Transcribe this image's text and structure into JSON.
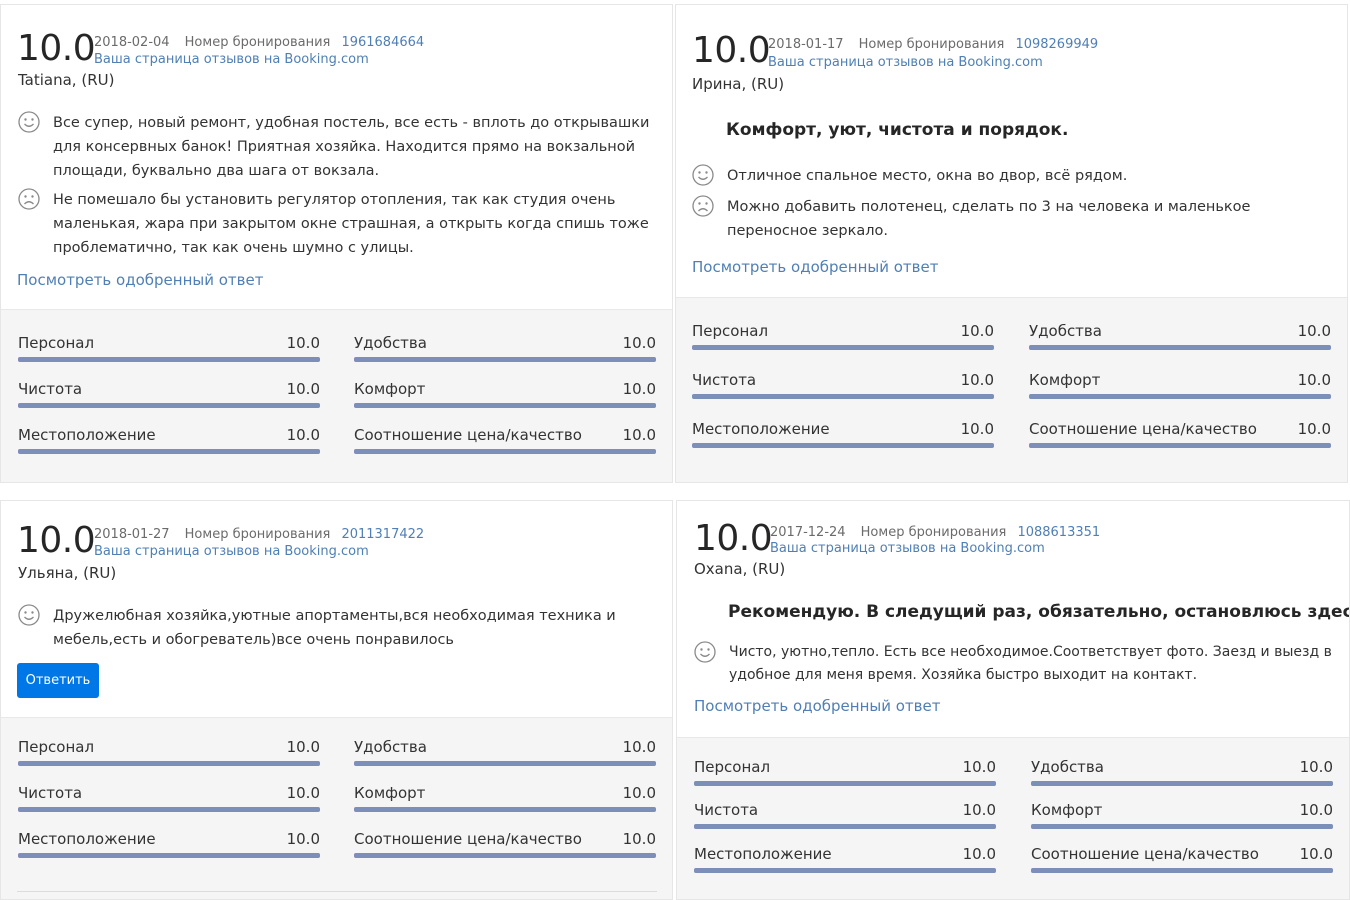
{
  "colors": {
    "link": "#4f7fb5",
    "bar": "#7c8fb8",
    "button": "#0077e6"
  },
  "booking_label": "Номер бронирования",
  "page_link": "Ваша страница отзывов на Booking.com",
  "approved_link": "Посмотреть одобренный ответ",
  "reply_button": "Ответить",
  "score_labels": {
    "staff": "Персонал",
    "facilities": "Удобства",
    "cleanliness": "Чистота",
    "comfort": "Комфорт",
    "location": "Местоположение",
    "value": "Соотношение цена/качество"
  },
  "reviews": [
    {
      "score": "10.0",
      "date": "2018-02-04",
      "booking_number": "1961684664",
      "author": "Tatiana, (RU)",
      "headline": "",
      "positive": "Все супер, новый ремонт, удобная постель, все есть - вплоть до открывашки для консервных банок! Приятная хозяйка. Находится прямо на вокзальной площади, буквально два шага от вокзала.",
      "negative": "Не помешало бы установить регулятор отопления, так как студия очень маленькая, жара при закрытом окне страшная, а открыть когда спишь тоже проблематично, так как очень шумно с улицы.",
      "scores": {
        "staff": "10.0",
        "facilities": "10.0",
        "cleanliness": "10.0",
        "comfort": "10.0",
        "location": "10.0",
        "value": "10.0"
      }
    },
    {
      "score": "10.0",
      "date": "2018-01-17",
      "booking_number": "1098269949",
      "author": "Ирина, (RU)",
      "headline": "Комфорт, уют, чистота и порядок.",
      "positive": "Отличное спальное место, окна во двор, всё рядом.",
      "negative": "Можно добавить полотенец, сделать по 3 на человека и маленькое переносное зеркало.",
      "scores": {
        "staff": "10.0",
        "facilities": "10.0",
        "cleanliness": "10.0",
        "comfort": "10.0",
        "location": "10.0",
        "value": "10.0"
      }
    },
    {
      "score": "10.0",
      "date": "2018-01-27",
      "booking_number": "2011317422",
      "author": "Ульяна, (RU)",
      "headline": "",
      "positive": "Дружелюбная хозяйка,уютные апортаменты,вся необходимая техника и мебель,есть и обогреватель)все очень понравилось",
      "negative": "",
      "scores": {
        "staff": "10.0",
        "facilities": "10.0",
        "cleanliness": "10.0",
        "comfort": "10.0",
        "location": "10.0",
        "value": "10.0"
      }
    },
    {
      "score": "10.0",
      "date": "2017-12-24",
      "booking_number": "1088613351",
      "author": "Oxana, (RU)",
      "headline": "Рекомендую. В следущий раз, обязательно, остановлюсь здесь.",
      "positive": "Чисто, уютно,тепло. Есть все необходимое.Соответствует фото. Заезд и выезд в удобное для меня время. Хозяйка быстро выходит на контакт.",
      "negative": "",
      "scores": {
        "staff": "10.0",
        "facilities": "10.0",
        "cleanliness": "10.0",
        "comfort": "10.0",
        "location": "10.0",
        "value": "10.0"
      }
    }
  ],
  "score_fill_fraction": 1.0
}
